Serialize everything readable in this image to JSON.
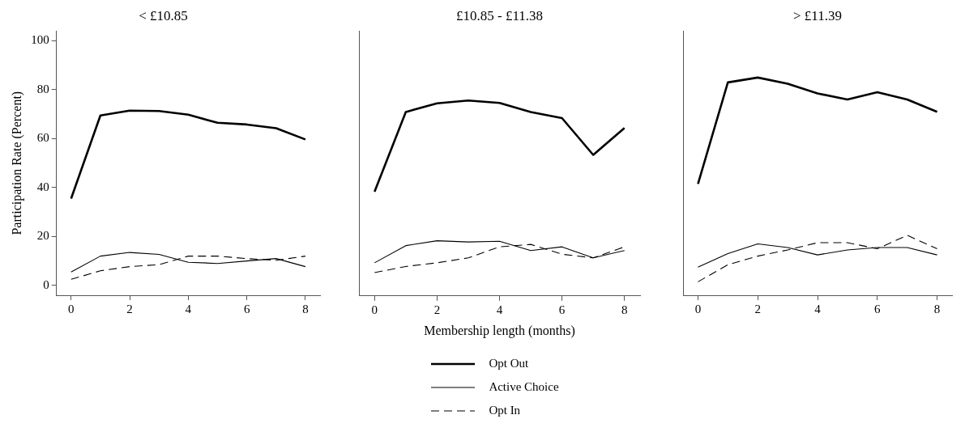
{
  "chart_data": [
    {
      "type": "line",
      "title": "< £10.85",
      "ylabel": "Participation Rate (Percent)",
      "x": [
        0,
        1,
        2,
        3,
        4,
        5,
        6,
        7,
        8
      ],
      "xlim": [
        -0.5,
        8.5
      ],
      "xticks": [
        0,
        2,
        4,
        6,
        8
      ],
      "ylim": [
        -4,
        104
      ],
      "yticks": [
        0,
        20,
        40,
        60,
        80,
        100
      ],
      "grid": false,
      "legend": false,
      "marker": "none",
      "series": [
        {
          "color": "#000000",
          "line_style": "solid",
          "values": [
            35.5,
            69.5,
            71.5,
            71.3,
            69.8,
            66.5,
            65.8,
            64.3,
            59.7
          ]
        },
        {
          "color": "#000000",
          "line_style": "solid",
          "values": [
            5.5,
            12,
            13.5,
            12.7,
            9.5,
            9,
            10,
            11,
            7.7
          ]
        },
        {
          "color": "#000000",
          "line_style": "dashed",
          "values": [
            2.5,
            6,
            7.7,
            8.5,
            12,
            12,
            11,
            10.3,
            12
          ]
        }
      ]
    },
    {
      "type": "line",
      "title": "£10.85 - £11.38",
      "xlabel": "Membership length (months)",
      "x": [
        0,
        1,
        2,
        3,
        4,
        5,
        6,
        7,
        8
      ],
      "xlim": [
        -0.5,
        8.5
      ],
      "xticks": [
        0,
        2,
        4,
        6,
        8
      ],
      "ylim": [
        -4,
        104
      ],
      "tick_labels": "x",
      "grid": false,
      "legend": "bottom",
      "marker": "none",
      "series": [
        {
          "name": "Opt Out",
          "color": "#000000",
          "line_style": "solid",
          "values": [
            38.5,
            71,
            74.5,
            75.7,
            74.7,
            71,
            68.5,
            53.5,
            64.5
          ]
        },
        {
          "name": "Active Choice",
          "color": "#000000",
          "line_style": "solid",
          "values": [
            9.5,
            16.5,
            18.5,
            18,
            18.3,
            14.5,
            16,
            11.5,
            14.5
          ]
        },
        {
          "name": "Opt In",
          "color": "#000000",
          "line_style": "dashed",
          "values": [
            5.5,
            8,
            9.5,
            11.5,
            16,
            17,
            13,
            11.5,
            16
          ]
        }
      ]
    },
    {
      "type": "line",
      "title": "> £11.39",
      "x": [
        0,
        1,
        2,
        3,
        4,
        5,
        6,
        7,
        8
      ],
      "xlim": [
        -0.5,
        8.5
      ],
      "xticks": [
        0,
        2,
        4,
        6,
        8
      ],
      "ylim": [
        -4,
        104
      ],
      "tick_labels": "x",
      "grid": false,
      "legend": false,
      "marker": "none",
      "series": [
        {
          "color": "#000000",
          "line_style": "solid",
          "values": [
            41.5,
            83,
            85,
            82.5,
            78.5,
            76,
            79,
            76,
            71
          ]
        },
        {
          "color": "#000000",
          "line_style": "solid",
          "values": [
            7.5,
            13,
            17,
            15.5,
            12.5,
            14.5,
            15.5,
            15.5,
            12.5
          ]
        },
        {
          "color": "#000000",
          "line_style": "dashed",
          "values": [
            1.5,
            8.5,
            12,
            14.5,
            17.5,
            17.5,
            15,
            20.5,
            15
          ]
        }
      ]
    }
  ]
}
